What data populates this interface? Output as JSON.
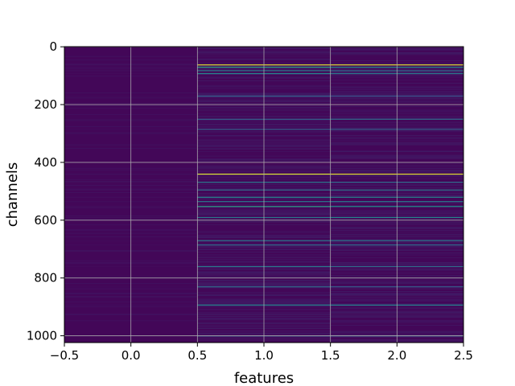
{
  "chart_data": {
    "type": "heatmap",
    "title": "",
    "xlabel": "features",
    "ylabel": "channels",
    "xlim": [
      -0.5,
      2.5
    ],
    "ylim": [
      1023.5,
      -0.5
    ],
    "y_inverted": true,
    "n_rows": 1024,
    "n_cols": 3,
    "colormap": "viridis",
    "grid": true,
    "x_ticks": [
      -0.5,
      0.0,
      0.5,
      1.0,
      1.5,
      2.0,
      2.5
    ],
    "x_tick_labels": [
      "−0.5",
      "0.0",
      "0.5",
      "1.0",
      "1.5",
      "2.0",
      "2.5"
    ],
    "y_ticks": [
      0,
      200,
      400,
      600,
      800,
      1000
    ],
    "y_tick_labels": [
      "0",
      "200",
      "400",
      "600",
      "800",
      "1000"
    ],
    "background_level": 0.02,
    "highlight_rows": [
      {
        "row": 62,
        "levels": [
          0.05,
          0.95,
          0.95
        ]
      },
      {
        "row": 70,
        "levels": [
          0.04,
          0.55,
          0.45
        ]
      },
      {
        "row": 82,
        "levels": [
          0.04,
          0.4,
          0.35
        ]
      },
      {
        "row": 92,
        "levels": [
          0.03,
          0.45,
          0.4
        ]
      },
      {
        "row": 170,
        "levels": [
          0.03,
          0.3,
          0.25
        ]
      },
      {
        "row": 250,
        "levels": [
          0.03,
          0.3,
          0.35
        ]
      },
      {
        "row": 285,
        "levels": [
          0.03,
          0.3,
          0.3
        ]
      },
      {
        "row": 440,
        "levels": [
          0.05,
          0.95,
          0.95
        ]
      },
      {
        "row": 468,
        "levels": [
          0.04,
          0.4,
          0.35
        ]
      },
      {
        "row": 495,
        "levels": [
          0.04,
          0.35,
          0.4
        ]
      },
      {
        "row": 520,
        "levels": [
          0.04,
          0.45,
          0.45
        ]
      },
      {
        "row": 535,
        "levels": [
          0.04,
          0.4,
          0.4
        ]
      },
      {
        "row": 552,
        "levels": [
          0.04,
          0.55,
          0.5
        ]
      },
      {
        "row": 590,
        "levels": [
          0.04,
          0.4,
          0.45
        ]
      },
      {
        "row": 670,
        "levels": [
          0.03,
          0.4,
          0.4
        ]
      },
      {
        "row": 685,
        "levels": [
          0.03,
          0.35,
          0.35
        ]
      },
      {
        "row": 760,
        "levels": [
          0.03,
          0.4,
          0.35
        ]
      },
      {
        "row": 830,
        "levels": [
          0.03,
          0.35,
          0.3
        ]
      },
      {
        "row": 893,
        "levels": [
          0.04,
          0.45,
          0.45
        ]
      },
      {
        "row": 1000,
        "levels": [
          0.04,
          0.3,
          0.3
        ]
      }
    ]
  }
}
